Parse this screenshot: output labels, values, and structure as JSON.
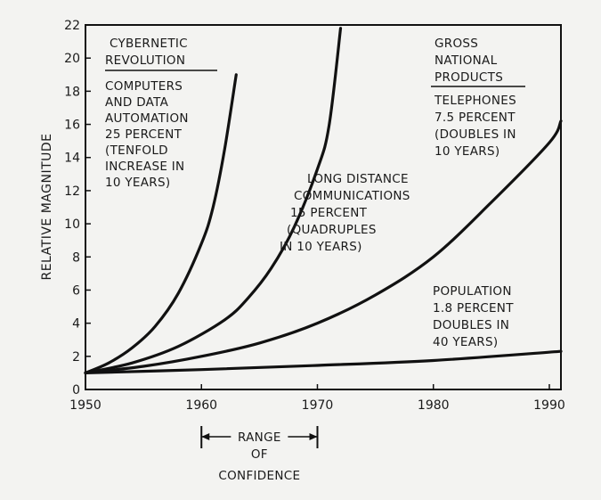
{
  "chart_data": {
    "type": "line",
    "ylabel": "RELATIVE MAGNITUDE",
    "xlim": [
      1950,
      1991
    ],
    "ylim": [
      0,
      22
    ],
    "xticks": [
      1950,
      1960,
      1970,
      1980,
      1990
    ],
    "yticks": [
      0,
      2,
      4,
      6,
      8,
      10,
      12,
      14,
      16,
      18,
      20,
      22
    ],
    "series": [
      {
        "x": [
          1950,
          1952,
          1954,
          1956,
          1958,
          1960,
          1961,
          1962,
          1963
        ],
        "y": [
          1.0,
          1.6,
          2.5,
          3.8,
          5.8,
          8.8,
          11.0,
          14.5,
          19.0
        ]
      },
      {
        "x": [
          1950,
          1954,
          1958,
          1962,
          1964,
          1966,
          1968,
          1970,
          1971,
          1972
        ],
        "y": [
          1.0,
          1.6,
          2.6,
          4.2,
          5.5,
          7.3,
          9.8,
          13.3,
          15.9,
          21.8
        ]
      },
      {
        "x": [
          1950,
          1955,
          1960,
          1965,
          1970,
          1975,
          1980,
          1985,
          1990,
          1991
        ],
        "y": [
          1.0,
          1.4,
          2.0,
          2.8,
          4.0,
          5.7,
          8.0,
          11.3,
          14.9,
          16.2
        ]
      },
      {
        "x": [
          1950,
          1960,
          1970,
          1980,
          1991
        ],
        "y": [
          1.0,
          1.2,
          1.45,
          1.75,
          2.3
        ]
      }
    ]
  },
  "annotations": {
    "cybernetic_title": [
      "CYBERNETIC",
      "REVOLUTION"
    ],
    "computers": [
      "COMPUTERS",
      "AND DATA",
      "AUTOMATION",
      "25 PERCENT",
      "(TENFOLD",
      "INCREASE IN",
      "10 YEARS)"
    ],
    "gnp_title": [
      "GROSS",
      "NATIONAL",
      "PRODUCTS"
    ],
    "telephones": [
      "TELEPHONES",
      "7.5 PERCENT",
      "(DOUBLES IN",
      "10 YEARS)"
    ],
    "long_distance": [
      "LONG DISTANCE",
      "COMMUNICATIONS",
      "15 PERCENT",
      "(QUADRUPLES",
      "IN 10 YEARS)"
    ],
    "population": [
      "POPULATION",
      "1.8 PERCENT",
      "DOUBLES IN",
      "40 YEARS)"
    ],
    "range_line1": "RANGE",
    "range_line2": "OF",
    "range_line3": "CONFIDENCE"
  },
  "confidence_range": [
    1960,
    1970
  ]
}
